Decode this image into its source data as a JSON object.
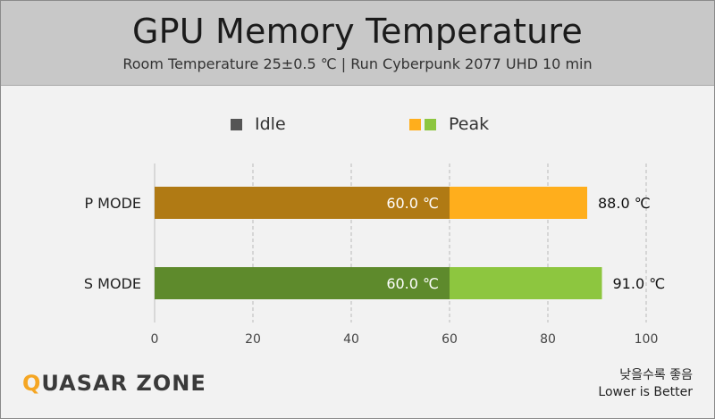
{
  "title": "GPU Memory Temperature",
  "subtitle": "Room Temperature 25±0.5 ℃  |  Run Cyberpunk 2077 UHD 10 min",
  "legend": [
    {
      "label": "Idle",
      "colors": [
        "#555555"
      ]
    },
    {
      "label": "Peak",
      "colors": [
        "#ffae1c",
        "#8dc63f"
      ]
    }
  ],
  "chart_data": {
    "type": "bar",
    "orientation": "horizontal",
    "categories": [
      "P MODE",
      "S MODE"
    ],
    "series": [
      {
        "name": "Idle",
        "values": [
          60.0,
          60.0
        ],
        "labels": [
          "60.0 ℃",
          "60.0 ℃"
        ],
        "colors": [
          "#b07a14",
          "#5e8a2c"
        ]
      },
      {
        "name": "Peak",
        "values": [
          88.0,
          91.0
        ],
        "labels": [
          "88.0 ℃",
          "91.0 ℃"
        ],
        "colors": [
          "#ffae1c",
          "#8dc63f"
        ]
      }
    ],
    "xlim": [
      0,
      100
    ],
    "xticks": [
      0,
      20,
      40,
      60,
      80,
      100
    ],
    "grid": true,
    "legend_position": "top"
  },
  "logo": {
    "text_prefix": "Q",
    "text_rest": "UASAR ZONE"
  },
  "note": {
    "line1": "낮을수록 좋음",
    "line2": "Lower is Better"
  }
}
